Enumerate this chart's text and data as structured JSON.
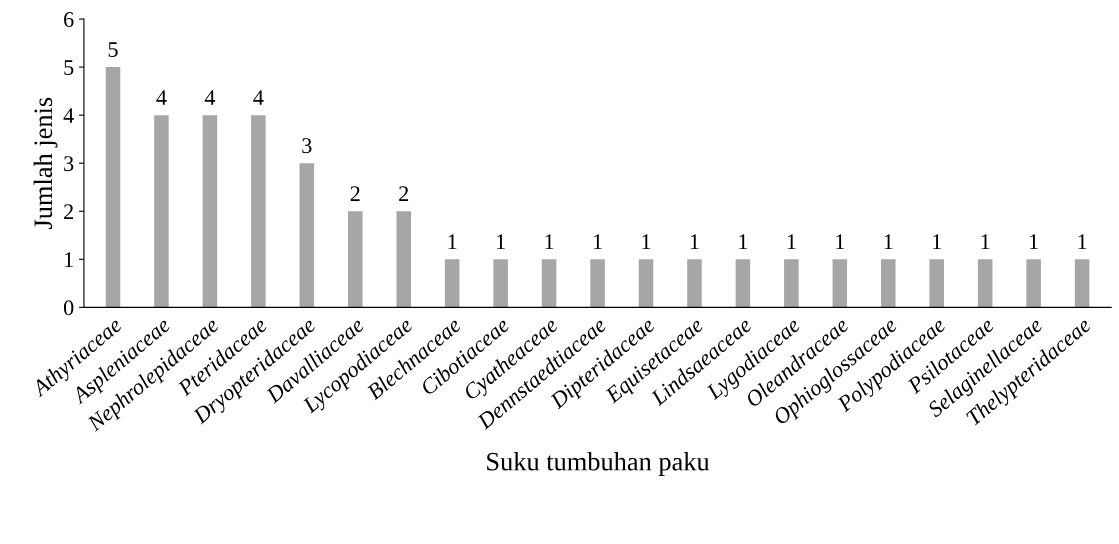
{
  "chart_data": {
    "type": "bar",
    "xlabel": "Suku tumbuhan paku",
    "ylabel": "Jumlah jenis",
    "categories": [
      "Athyriaceae",
      "Aspleniaceae",
      "Nephrolepidaceae",
      "Pteridaceae",
      "Dryopteridaceae",
      "Davalliaceae",
      "Lycopodiaceae",
      "Blechnaceae",
      "Cibotiaceae",
      "Cyatheaceae",
      "Dennstaedtiaceae",
      "Dipteridaceae",
      "Equisetaceae",
      "Lindsaeaceae",
      "Lygodiaceae",
      "Oleandraceae",
      "Ophioglossaceae",
      "Polypodiaceae",
      "Psilotaceae",
      "Selaginellaceae",
      "Thelypteridaceae"
    ],
    "values": [
      5,
      4,
      4,
      4,
      3,
      2,
      2,
      1,
      1,
      1,
      1,
      1,
      1,
      1,
      1,
      1,
      1,
      1,
      1,
      1,
      1
    ],
    "color": "#a6a6a6",
    "ylim": [
      0,
      6
    ],
    "yticks": [
      0,
      1,
      2,
      3,
      4,
      5,
      6
    ],
    "grid": false,
    "data_labels": true
  }
}
